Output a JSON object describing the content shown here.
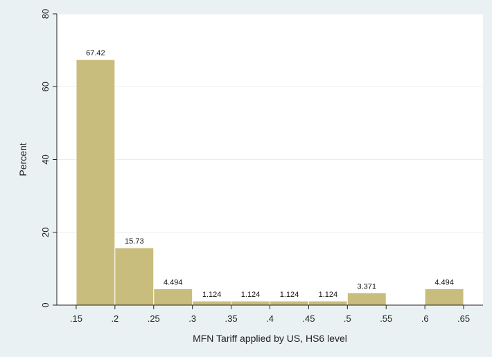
{
  "chart_data": {
    "type": "bar",
    "xlabel": "MFN Tariff applied by US, HS6 level",
    "ylabel": "Percent",
    "ylim": [
      0,
      80
    ],
    "xlim": [
      0.125,
      0.675
    ],
    "y_ticks": [
      0,
      20,
      40,
      60,
      80
    ],
    "x_ticks": [
      {
        "value": 0.15,
        "label": ".15"
      },
      {
        "value": 0.2,
        "label": ".2"
      },
      {
        "value": 0.25,
        "label": ".25"
      },
      {
        "value": 0.3,
        "label": ".3"
      },
      {
        "value": 0.35,
        "label": ".35"
      },
      {
        "value": 0.4,
        "label": ".4"
      },
      {
        "value": 0.45,
        "label": ".45"
      },
      {
        "value": 0.5,
        "label": ".5"
      },
      {
        "value": 0.55,
        "label": ".55"
      },
      {
        "value": 0.6,
        "label": ".6"
      },
      {
        "value": 0.65,
        "label": ".65"
      }
    ],
    "bin_width": 0.05,
    "bars": [
      {
        "x_start": 0.15,
        "value": 67.42,
        "label": "67.42"
      },
      {
        "x_start": 0.2,
        "value": 15.73,
        "label": "15.73"
      },
      {
        "x_start": 0.25,
        "value": 4.494,
        "label": "4.494"
      },
      {
        "x_start": 0.3,
        "value": 1.124,
        "label": "1.124"
      },
      {
        "x_start": 0.35,
        "value": 1.124,
        "label": "1.124"
      },
      {
        "x_start": 0.4,
        "value": 1.124,
        "label": "1.124"
      },
      {
        "x_start": 0.45,
        "value": 1.124,
        "label": "1.124"
      },
      {
        "x_start": 0.5,
        "value": 3.371,
        "label": "3.371"
      },
      {
        "x_start": 0.6,
        "value": 4.494,
        "label": "4.494"
      }
    ],
    "grid": true,
    "colors": {
      "bar_fill": "#c9bd7d",
      "bar_stroke": "#ffffff",
      "plot_background": "#ffffff",
      "outer_background": "#eaf1f3",
      "grid": "#e8eef0"
    }
  }
}
